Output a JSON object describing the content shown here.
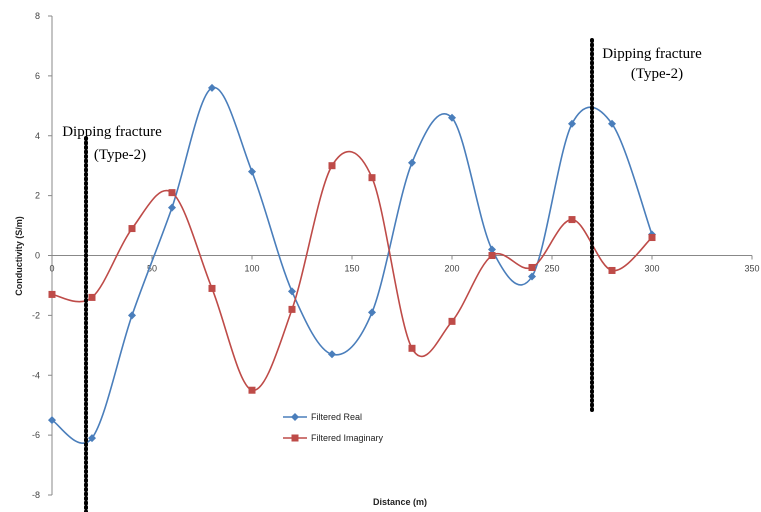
{
  "chart_data": {
    "type": "line",
    "title": "",
    "xlabel": "Distance (m)",
    "ylabel": "Conductivity (S/m)",
    "xlim": [
      0,
      350
    ],
    "ylim": [
      -8,
      8
    ],
    "x_ticks": [
      0,
      50,
      100,
      150,
      200,
      250,
      300,
      350
    ],
    "y_ticks": [
      -8,
      -6,
      -4,
      -2,
      0,
      2,
      4,
      6,
      8
    ],
    "grid": false,
    "legend_position": "bottom-center",
    "series": [
      {
        "name": "Filtered Real",
        "color": "#4a7ebb",
        "marker": "diamond",
        "x": [
          0,
          20,
          40,
          60,
          80,
          100,
          120,
          140,
          160,
          180,
          200,
          220,
          240,
          260,
          280,
          300
        ],
        "y": [
          -5.5,
          -6.1,
          -2.0,
          1.6,
          5.6,
          2.8,
          -1.2,
          -3.3,
          -1.9,
          3.1,
          4.6,
          0.2,
          -0.7,
          4.4,
          4.4,
          0.7
        ]
      },
      {
        "name": "Filtered Imaginary",
        "color": "#be4b48",
        "marker": "square",
        "x": [
          0,
          20,
          40,
          60,
          80,
          100,
          120,
          140,
          160,
          180,
          200,
          220,
          240,
          260,
          280,
          300
        ],
        "y": [
          -1.3,
          -1.4,
          0.9,
          2.1,
          -1.1,
          -4.5,
          -1.8,
          3.0,
          2.6,
          -3.1,
          -2.2,
          0.0,
          -0.4,
          1.2,
          -0.5,
          0.6
        ]
      }
    ],
    "annotations": [
      {
        "line1": "Dipping fracture",
        "line2": "(Type-2)",
        "x": 17
      },
      {
        "line1": "Dipping fracture",
        "line2": "(Type-2)",
        "x": 270
      }
    ]
  }
}
